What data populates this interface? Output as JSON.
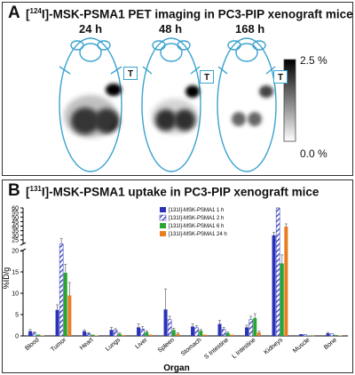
{
  "panel_a": {
    "label": "A",
    "title_prefix": "[",
    "title_sup": "124",
    "title_rest": "I]-MSK-PSMA1 PET imaging in PC3-PIP xenograft mice",
    "timepoints": [
      "24 h",
      "48 h",
      "168 h"
    ],
    "tumor_marker": "T",
    "scale_max": "2.5 %",
    "scale_min": "0.0 %"
  },
  "panel_b": {
    "label": "B",
    "title_prefix": "[",
    "title_sup": "131",
    "title_rest": "I]-MSK-PSMA1 uptake in PC3-PIP xenograft mice"
  },
  "chart_data": {
    "type": "bar",
    "xlabel": "Organ",
    "ylabel": "%ID/g",
    "y_broken_axis": true,
    "y_lower_range": [
      0,
      20
    ],
    "y_upper_range": [
      20,
      60
    ],
    "y_ticks_lower": [
      0,
      5,
      10,
      15,
      20
    ],
    "y_ticks_upper": [
      25,
      30,
      35,
      40,
      45,
      50,
      55,
      60
    ],
    "legend_position": "top-center",
    "categories": [
      "Blood",
      "Tumor",
      "Heart",
      "Lungs",
      "Liver",
      "Spleen",
      "Stomach",
      "S Intestine",
      "L Intestine",
      "Kidneys",
      "Muscle",
      "Bone"
    ],
    "series": [
      {
        "name": "[131I]-MSK-PSMA1 1 h",
        "color": "#2a32b8",
        "pattern": "solid",
        "values": [
          1.1,
          6.1,
          1.1,
          1.4,
          2.0,
          6.2,
          2.2,
          2.8,
          2.0,
          30.0,
          0.4,
          0.6
        ],
        "errors": [
          0.4,
          1.2,
          0.3,
          0.6,
          0.8,
          4.8,
          0.6,
          0.8,
          0.5,
          3.0,
          0.1,
          0.2
        ]
      },
      {
        "name": "[131I]-MSK-PSMA1 2 h",
        "color": "#2a32b8",
        "pattern": "hatched",
        "values": [
          0.7,
          20.5,
          0.6,
          1.3,
          1.6,
          3.8,
          1.9,
          1.5,
          3.8,
          62.0,
          0.3,
          0.5
        ],
        "errors": [
          0.2,
          6.0,
          0.2,
          0.4,
          0.6,
          0.8,
          0.5,
          0.5,
          0.8,
          3.0,
          0.1,
          0.1
        ]
      },
      {
        "name": "[131I]-MSK-PSMA1 6 h",
        "color": "#29a62f",
        "pattern": "solid",
        "values": [
          0.3,
          14.8,
          0.3,
          0.5,
          0.9,
          1.4,
          1.2,
          0.7,
          4.2,
          17.0,
          0.1,
          0.2
        ],
        "errors": [
          0.1,
          2.0,
          0.1,
          0.2,
          0.3,
          0.4,
          0.3,
          0.2,
          1.0,
          2.0,
          0.05,
          0.1
        ]
      },
      {
        "name": "[131I]-MSK-PSMA1 24 h",
        "color": "#e87d22",
        "pattern": "solid",
        "values": [
          0.1,
          9.5,
          0.1,
          0.2,
          0.3,
          0.5,
          0.3,
          0.3,
          0.8,
          39.5,
          0.05,
          0.1
        ],
        "errors": [
          0.05,
          3.0,
          0.05,
          0.1,
          0.1,
          0.2,
          0.1,
          0.1,
          0.3,
          3.0,
          0.02,
          0.05
        ]
      }
    ]
  },
  "colors": {
    "outline": "#3ba3cf",
    "series_1h": "#2a32b8",
    "series_6h": "#29a62f",
    "series_24h": "#e87d22"
  }
}
